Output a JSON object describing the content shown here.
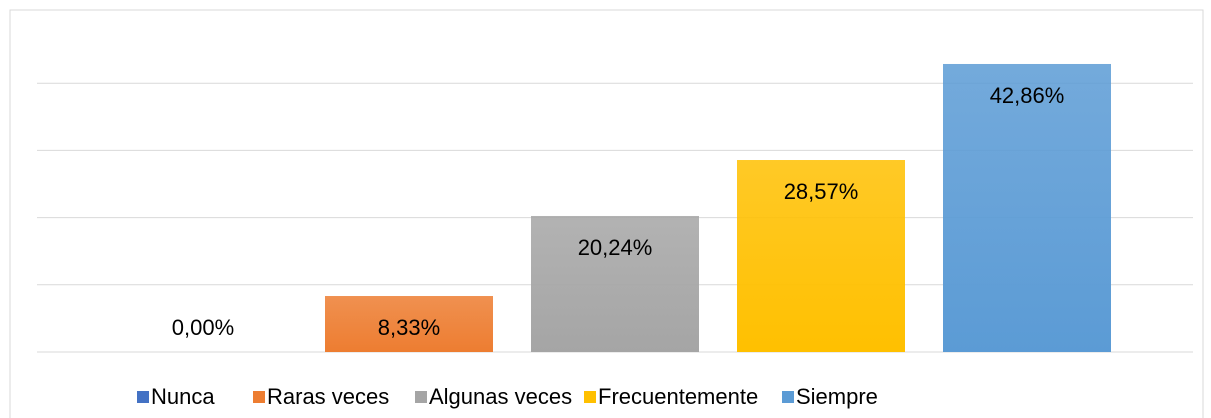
{
  "chart_data": {
    "type": "bar",
    "categories": [
      "Nunca",
      "Raras veces",
      "Algunas veces",
      "Frecuentemente",
      "Siempre"
    ],
    "values": [
      0,
      8.33,
      20.24,
      28.57,
      42.86
    ],
    "value_labels": [
      "0,00%",
      "8,33%",
      "20,24%",
      "28,57%",
      "42,86%"
    ],
    "colors": [
      "#4472c4",
      "#ed7d31",
      "#a5a5a5",
      "#ffc000",
      "#5b9bd5"
    ],
    "ylim": [
      0,
      50
    ],
    "yticks": [
      0,
      10,
      20,
      30,
      40
    ],
    "grid": true,
    "legend": "bottom"
  }
}
